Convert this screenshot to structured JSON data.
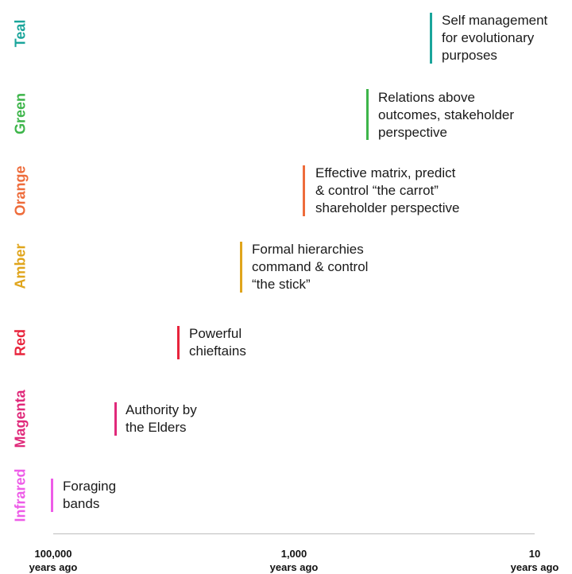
{
  "stages": [
    {
      "name": "Teal",
      "color": "#1aa59b",
      "description": "Self management\nfor evolutionary\npurposes"
    },
    {
      "name": "Green",
      "color": "#3db54a",
      "description": "Relations above\noutcomes, stakeholder\nperspective"
    },
    {
      "name": "Orange",
      "color": "#ee6c3b",
      "description": "Effective matrix, predict\n& control “the carrot”\nshareholder perspective"
    },
    {
      "name": "Amber",
      "color": "#e0a51c",
      "description": "Formal hierarchies\ncommand & control\n“the stick”"
    },
    {
      "name": "Red",
      "color": "#e8243c",
      "description": "Powerful\nchieftains"
    },
    {
      "name": "Magenta",
      "color": "#e0297a",
      "description": "Authority by\nthe Elders"
    },
    {
      "name": "Infrared",
      "color": "#ee5ce8",
      "description": "Foraging\nbands"
    }
  ],
  "axis": {
    "ticks": [
      {
        "value": "100,000",
        "unit": "years ago"
      },
      {
        "value": "1,000",
        "unit": "years ago"
      },
      {
        "value": "10",
        "unit": "years ago"
      }
    ]
  }
}
